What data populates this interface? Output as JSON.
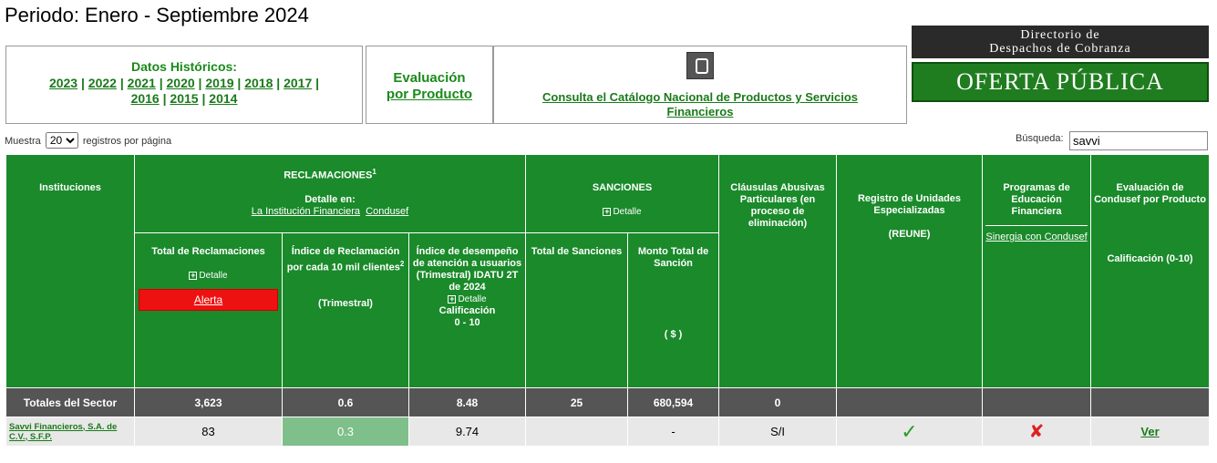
{
  "period": "Periodo: Enero - Septiembre 2024",
  "historicos": {
    "title": "Datos Históricos:",
    "years": [
      "2023",
      "2022",
      "2021",
      "2020",
      "2019",
      "2018",
      "2017",
      "2016",
      "2015",
      "2014"
    ]
  },
  "evaluacion": {
    "line1": "Evaluación",
    "line2": "por Producto"
  },
  "catalogo": {
    "link": "Consulta el Catálogo Nacional de Productos y Servicios Financieros"
  },
  "directorio": {
    "line1": "Directorio de",
    "line2": "Despachos de Cobranza"
  },
  "oferta": {
    "label": "OFERTA PÚBLICA"
  },
  "controls": {
    "muestra_label": "Muestra",
    "page_size": "20",
    "registros_label": "registros por página",
    "busqueda_label": "Búsqueda:",
    "search_value": "savvi"
  },
  "table": {
    "h_instituciones": "Instituciones",
    "h_reclamaciones": "RECLAMACIONES",
    "h_recl_sup": "1",
    "h_detalle_en": "Detalle en:",
    "h_link_inst": "La Institución Financiera",
    "h_link_condusef": "Condusef",
    "h_sanciones": "SANCIONES",
    "h_detalle": "Detalle",
    "h_clausulas": "Cláusulas Abusivas Particulares (en proceso de eliminación)",
    "h_reune": "Registro de Unidades Especializadas",
    "h_reune2": "(REUNE)",
    "h_programas": "Programas de Educación Financiera",
    "h_sinergia": "Sinergia con Condusef",
    "h_eval": "Evaluación de Condusef por Producto",
    "h_calif": "Calificación (0-10)",
    "h_total_recl": "Total de Reclamaciones",
    "h_alerta": "Alerta",
    "h_indice": "Índice de Reclamación por cada 10 mil clientes",
    "h_indice_sup": "2",
    "h_trimestral": "(Trimestral)",
    "h_idatu1": "Índice de desempeño de atención a usuarios (Trimestral) IDATU 2T de 2024",
    "h_idatu2": "Calificación",
    "h_idatu3": "0 - 10",
    "h_total_sanc": "Total de Sanciones",
    "h_monto": "Monto Total de Sanción",
    "h_pesos": "( $ )",
    "totals": [
      "Totales del Sector",
      "3,623",
      "0.6",
      "8.48",
      "25",
      "680,594",
      "0",
      "",
      "",
      ""
    ],
    "rows": [
      {
        "inst": "Savvi Financieros, S.A. de C.V., S.F.P.",
        "total": "83",
        "indice": "0.3",
        "idatu": "9.74",
        "sanciones": "",
        "monto": "-",
        "clausulas": "S/I",
        "ver": "Ver"
      }
    ]
  }
}
